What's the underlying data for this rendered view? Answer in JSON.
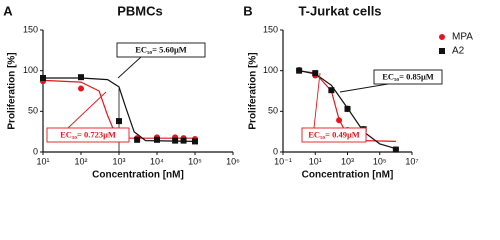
{
  "chart_data": [
    {
      "type": "scatter",
      "panel": "A",
      "title": "PBMCs",
      "xlabel": "Concentration [nM]",
      "ylabel": "Proliferation [%]",
      "xscale": "log",
      "xlim": [
        10,
        1000000
      ],
      "xticks": [
        {
          "value": 10,
          "label": "10¹"
        },
        {
          "value": 100,
          "label": "10²"
        },
        {
          "value": 1000,
          "label": "10³"
        },
        {
          "value": 10000,
          "label": "10⁴"
        },
        {
          "value": 100000,
          "label": "10⁵"
        },
        {
          "value": 1000000,
          "label": "10⁶"
        }
      ],
      "ylim": [
        0,
        150
      ],
      "yticks": [
        0,
        50,
        100,
        150
      ],
      "series": [
        {
          "color": "#e8141c",
          "marker": "circle",
          "x": [
            10,
            100,
            1000,
            3000,
            10000,
            30000,
            50000,
            100000
          ],
          "values": [
            87,
            78,
            16,
            17,
            18,
            18,
            17,
            16
          ],
          "errors": [
            2,
            3,
            3,
            2,
            3,
            3,
            2,
            2
          ]
        },
        {
          "color": "#111111",
          "marker": "square",
          "x": [
            10,
            100,
            1000,
            3000,
            10000,
            30000,
            50000,
            100000
          ],
          "values": [
            91,
            92,
            38,
            15,
            15,
            14,
            14,
            13
          ],
          "errors": [
            2,
            2,
            40,
            3,
            3,
            3,
            3,
            3
          ]
        }
      ],
      "fits": [
        {
          "color": "#e8141c",
          "x": [
            10,
            100,
            300,
            500,
            800,
            1500,
            100000
          ],
          "values": [
            88,
            86,
            75,
            45,
            22,
            17,
            17
          ]
        },
        {
          "color": "#111111",
          "x": [
            10,
            100,
            500,
            1000,
            1500,
            2500,
            5000,
            100000
          ],
          "values": [
            91,
            91,
            89,
            80,
            55,
            25,
            14,
            13
          ]
        }
      ],
      "annotations": [
        {
          "text": "EC₅₀= 5.60μM",
          "color": "#111111"
        },
        {
          "text": "EC₅₀= 0.723μM",
          "color": "#e8141c"
        }
      ]
    },
    {
      "type": "scatter",
      "panel": "B",
      "title": "T-Jurkat cells",
      "xlabel": "Concentration [nM]",
      "ylabel": "Proliferation [%]",
      "xscale": "log",
      "xlim": [
        0.1,
        10000000
      ],
      "xticks": [
        {
          "value": 0.1,
          "label": "10⁻¹"
        },
        {
          "value": 10,
          "label": "10¹"
        },
        {
          "value": 1000,
          "label": "10³"
        },
        {
          "value": 100000,
          "label": "10⁵"
        },
        {
          "value": 10000000,
          "label": "10⁷"
        }
      ],
      "ylim": [
        0,
        150
      ],
      "yticks": [
        0,
        50,
        100,
        150
      ],
      "series": [
        {
          "name": "MPA",
          "color": "#e8141c",
          "marker": "circle",
          "x": [
            1,
            10,
            300,
            1000,
            10000,
            1000000
          ],
          "values": [
            101,
            94,
            39,
            27,
            21,
            3
          ],
          "errors": [
            2,
            3,
            2,
            3,
            3,
            2
          ]
        },
        {
          "name": "A2",
          "color": "#111111",
          "marker": "square",
          "x": [
            1,
            10,
            100,
            1000,
            10000,
            1000000
          ],
          "values": [
            100,
            97,
            76,
            53,
            28,
            3
          ],
          "errors": [
            2,
            3,
            3,
            4,
            4,
            2
          ]
        }
      ],
      "fits": [
        {
          "color": "#e8141c",
          "x": [
            1,
            10,
            100,
            300,
            1000,
            10000,
            1000000
          ],
          "values": [
            100,
            97,
            75,
            40,
            20,
            14,
            13
          ]
        },
        {
          "color": "#111111",
          "x": [
            1,
            10,
            100,
            1000,
            10000,
            100000,
            1000000
          ],
          "values": [
            100,
            96,
            82,
            54,
            25,
            10,
            4
          ]
        }
      ],
      "annotations": [
        {
          "text": "EC₅₀= 0.85μM",
          "color": "#111111"
        },
        {
          "text": "EC₅₀= 0.49μM",
          "color": "#e8141c"
        }
      ]
    }
  ]
}
